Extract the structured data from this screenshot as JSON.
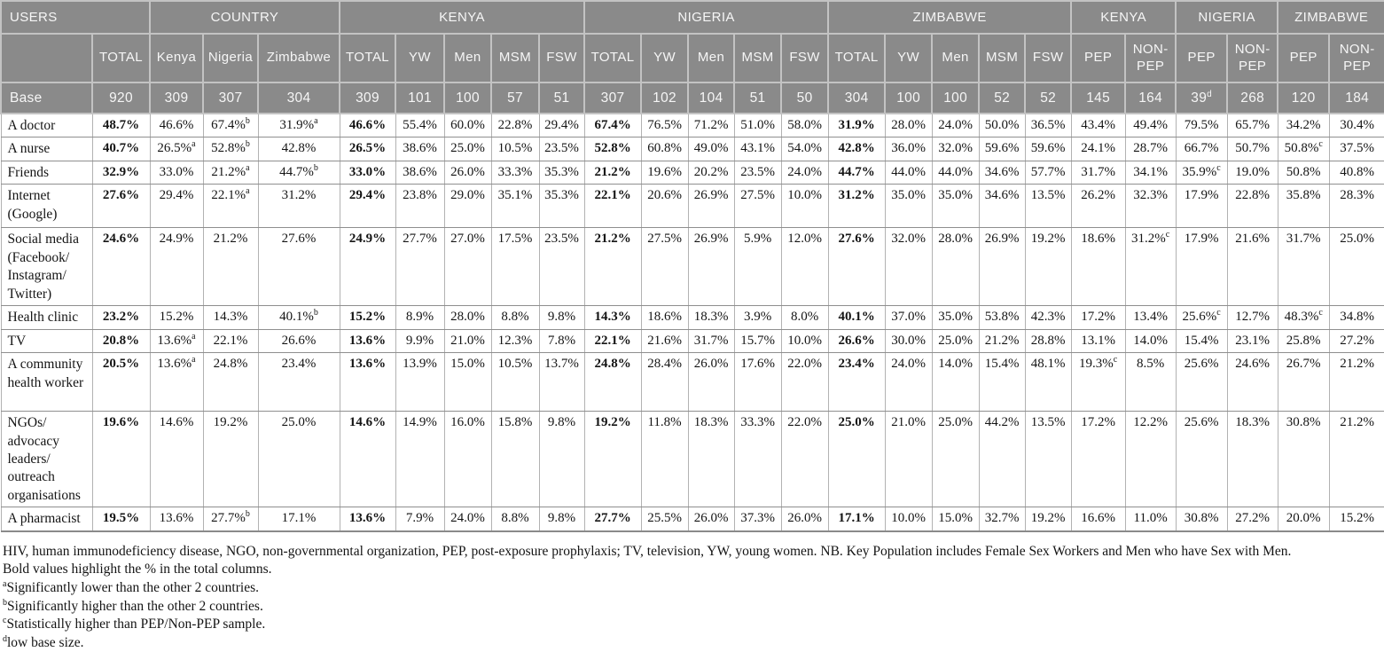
{
  "table": {
    "group_headers": [
      {
        "label": "USERS",
        "colspan": 2
      },
      {
        "label": "COUNTRY",
        "colspan": 3
      },
      {
        "label": "KENYA",
        "colspan": 5
      },
      {
        "label": "NIGERIA",
        "colspan": 5
      },
      {
        "label": "ZIMBABWE",
        "colspan": 5
      },
      {
        "label": "KENYA",
        "colspan": 2
      },
      {
        "label": "NIGERIA",
        "colspan": 2
      },
      {
        "label": "ZIMBABWE",
        "colspan": 2
      }
    ],
    "column_headers": [
      "",
      "TOTAL",
      "Kenya",
      "Nigeria",
      "Zimbabwe",
      "TOTAL",
      "YW",
      "Men",
      "MSM",
      "FSW",
      "TOTAL",
      "YW",
      "Men",
      "MSM",
      "FSW",
      "TOTAL",
      "YW",
      "Men",
      "MSM",
      "FSW",
      "PEP",
      "NON-PEP",
      "PEP",
      "NON-PEP",
      "PEP",
      "NON-PEP"
    ],
    "total_column_indices": [
      0,
      4,
      9,
      14
    ],
    "base_row": {
      "label": "Base",
      "cells": [
        "920",
        "309",
        "307",
        "304",
        "309",
        "101",
        "100",
        "57",
        "51",
        "307",
        "102",
        "104",
        "51",
        "50",
        "304",
        "100",
        "100",
        "52",
        "52",
        "145",
        "164",
        "39^d",
        "268",
        "120",
        "184"
      ]
    },
    "rows": [
      {
        "label": "A doctor",
        "cells": [
          "48.7%",
          "46.6%",
          "67.4%^b",
          "31.9%^a",
          "46.6%",
          "55.4%",
          "60.0%",
          "22.8%",
          "29.4%",
          "67.4%",
          "76.5%",
          "71.2%",
          "51.0%",
          "58.0%",
          "31.9%",
          "28.0%",
          "24.0%",
          "50.0%",
          "36.5%",
          "43.4%",
          "49.4%",
          "79.5%",
          "65.7%",
          "34.2%",
          "30.4%"
        ]
      },
      {
        "label": "A nurse",
        "cells": [
          "40.7%",
          "26.5%^a",
          "52.8%^b",
          "42.8%",
          "26.5%",
          "38.6%",
          "25.0%",
          "10.5%",
          "23.5%",
          "52.8%",
          "60.8%",
          "49.0%",
          "43.1%",
          "54.0%",
          "42.8%",
          "36.0%",
          "32.0%",
          "59.6%",
          "59.6%",
          "24.1%",
          "28.7%",
          "66.7%",
          "50.7%",
          "50.8%^c",
          "37.5%"
        ]
      },
      {
        "label": "Friends",
        "cells": [
          "32.9%",
          "33.0%",
          "21.2%^a",
          "44.7%^b",
          "33.0%",
          "38.6%",
          "26.0%",
          "33.3%",
          "35.3%",
          "21.2%",
          "19.6%",
          "20.2%",
          "23.5%",
          "24.0%",
          "44.7%",
          "44.0%",
          "44.0%",
          "34.6%",
          "57.7%",
          "31.7%",
          "34.1%",
          "35.9%^c",
          "19.0%",
          "50.8%",
          "40.8%"
        ]
      },
      {
        "label": "Internet (Google)",
        "cells": [
          "27.6%",
          "29.4%",
          "22.1%^a",
          "31.2%",
          "29.4%",
          "23.8%",
          "29.0%",
          "35.1%",
          "35.3%",
          "22.1%",
          "20.6%",
          "26.9%",
          "27.5%",
          "10.0%",
          "31.2%",
          "35.0%",
          "35.0%",
          "34.6%",
          "13.5%",
          "26.2%",
          "32.3%",
          "17.9%",
          "22.8%",
          "35.8%",
          "28.3%"
        ]
      },
      {
        "label": "Social media (Facebook/Instagram/Twitter)",
        "cells": [
          "24.6%",
          "24.9%",
          "21.2%",
          "27.6%",
          "24.9%",
          "27.7%",
          "27.0%",
          "17.5%",
          "23.5%",
          "21.2%",
          "27.5%",
          "26.9%",
          "5.9%",
          "12.0%",
          "27.6%",
          "32.0%",
          "28.0%",
          "26.9%",
          "19.2%",
          "18.6%",
          "31.2%^c",
          "17.9%",
          "21.6%",
          "31.7%",
          "25.0%"
        ]
      },
      {
        "label": "Health clinic",
        "cells": [
          "23.2%",
          "15.2%",
          "14.3%",
          "40.1%^b",
          "15.2%",
          "8.9%",
          "28.0%",
          "8.8%",
          "9.8%",
          "14.3%",
          "18.6%",
          "18.3%",
          "3.9%",
          "8.0%",
          "40.1%",
          "37.0%",
          "35.0%",
          "53.8%",
          "42.3%",
          "17.2%",
          "13.4%",
          "25.6%^c",
          "12.7%",
          "48.3%^c",
          "34.8%"
        ]
      },
      {
        "label": "TV",
        "cells": [
          "20.8%",
          "13.6%^a",
          "22.1%",
          "26.6%",
          "13.6%",
          "9.9%",
          "21.0%",
          "12.3%",
          "7.8%",
          "22.1%",
          "21.6%",
          "31.7%",
          "15.7%",
          "10.0%",
          "26.6%",
          "30.0%",
          "25.0%",
          "21.2%",
          "28.8%",
          "13.1%",
          "14.0%",
          "15.4%",
          "23.1%",
          "25.8%",
          "27.2%"
        ]
      },
      {
        "label": "A community health worker",
        "cells": [
          "20.5%",
          "13.6%^a",
          "24.8%",
          "23.4%",
          "13.6%",
          "13.9%",
          "15.0%",
          "10.5%",
          "13.7%",
          "24.8%",
          "28.4%",
          "26.0%",
          "17.6%",
          "22.0%",
          "23.4%",
          "24.0%",
          "14.0%",
          "15.4%",
          "48.1%",
          "19.3%^c",
          "8.5%",
          "25.6%",
          "24.6%",
          "26.7%",
          "21.2%"
        ]
      },
      {
        "label": "NGOs/advocacy leaders/outreach organisations",
        "cells": [
          "19.6%",
          "14.6%",
          "19.2%",
          "25.0%",
          "14.6%",
          "14.9%",
          "16.0%",
          "15.8%",
          "9.8%",
          "19.2%",
          "11.8%",
          "18.3%",
          "33.3%",
          "22.0%",
          "25.0%",
          "21.0%",
          "25.0%",
          "44.2%",
          "13.5%",
          "17.2%",
          "12.2%",
          "25.6%",
          "18.3%",
          "30.8%",
          "21.2%"
        ]
      },
      {
        "label": "A pharmacist",
        "cells": [
          "19.5%",
          "13.6%",
          "27.7%^b",
          "17.1%",
          "13.6%",
          "7.9%",
          "24.0%",
          "8.8%",
          "9.8%",
          "27.7%",
          "25.5%",
          "26.0%",
          "37.3%",
          "26.0%",
          "17.1%",
          "10.0%",
          "15.0%",
          "32.7%",
          "19.2%",
          "16.6%",
          "11.0%",
          "30.8%",
          "27.2%",
          "20.0%",
          "15.2%"
        ]
      }
    ]
  },
  "footnotes": [
    {
      "sup": "",
      "text": "HIV, human immunodeficiency disease, NGO, non-governmental organization, PEP, post-exposure prophylaxis; TV, television, YW, young women. NB. Key Population includes Female Sex Workers and Men who have Sex with Men."
    },
    {
      "sup": "",
      "text": "Bold values highlight the % in the total columns."
    },
    {
      "sup": "a",
      "text": "Significantly lower than the other 2 countries."
    },
    {
      "sup": "b",
      "text": "Significantly higher than the other 2 countries."
    },
    {
      "sup": "c",
      "text": "Statistically higher than PEP/Non-PEP sample."
    },
    {
      "sup": "d",
      "text": "low base size."
    }
  ],
  "colors": {
    "header_background": "#8a8a8a",
    "header_text": "#f6f6f6",
    "body_text": "#141414"
  }
}
